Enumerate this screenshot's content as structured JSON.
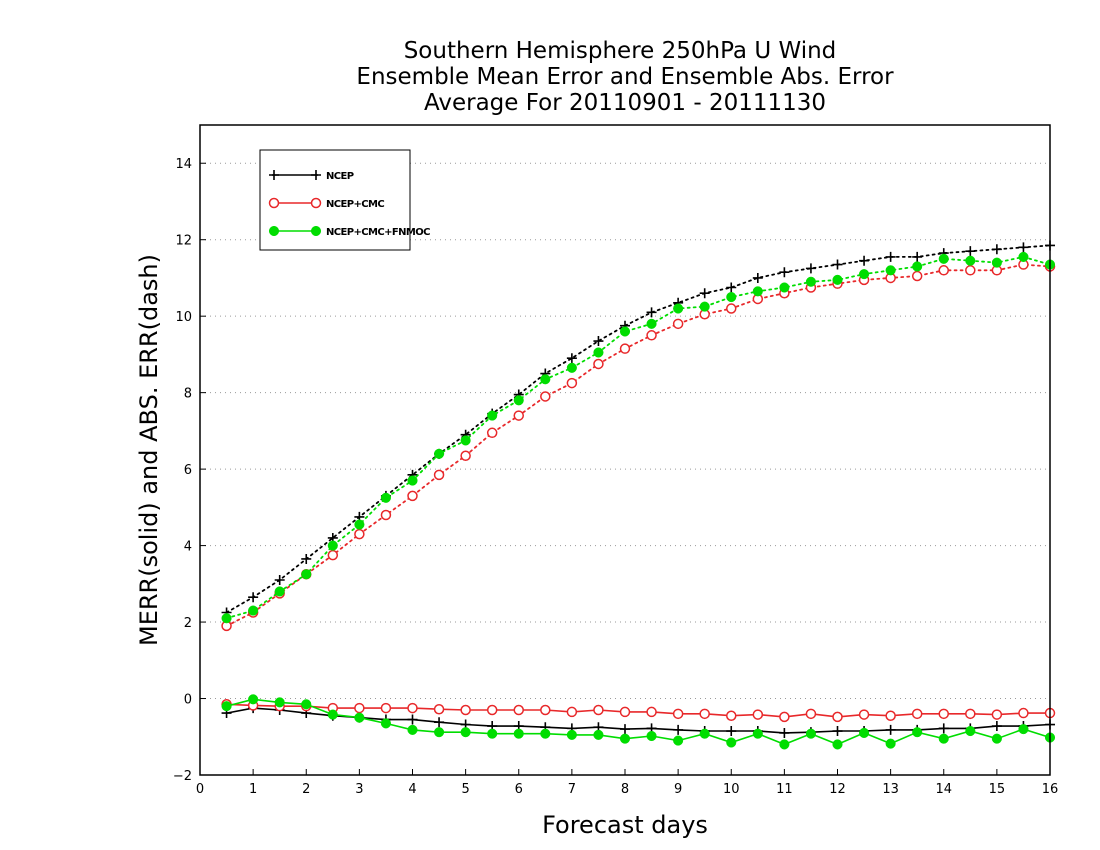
{
  "chart_data": {
    "type": "line",
    "title_lines": [
      "Southern Hemisphere 250hPa U Wind",
      "Ensemble Mean Error and Ensemble Abs. Error",
      "Average For 20110901 - 20111130"
    ],
    "xlabel": "Forecast days",
    "ylabel": "MERR(solid) and ABS. ERR(dash)",
    "xlim": [
      0,
      16
    ],
    "ylim": [
      -2,
      15
    ],
    "x_ticks": [
      0,
      1,
      2,
      3,
      4,
      5,
      6,
      7,
      8,
      9,
      10,
      11,
      12,
      13,
      14,
      15,
      16
    ],
    "x_tick_labels": [
      "0",
      "1",
      "2",
      "3",
      "4",
      "5",
      "6",
      "7",
      "8",
      "9",
      "10",
      "11",
      "12",
      "13",
      "14",
      "15",
      "16"
    ],
    "y_ticks": [
      -2,
      0,
      2,
      4,
      6,
      8,
      10,
      12,
      14
    ],
    "y_tick_labels": [
      "−2",
      "0",
      "2",
      "4",
      "6",
      "8",
      "10",
      "12",
      "14"
    ],
    "grid": "horizontal-dotted",
    "legend_position": "top-left",
    "x": [
      0.5,
      1,
      1.5,
      2,
      2.5,
      3,
      3.5,
      4,
      4.5,
      5,
      5.5,
      6,
      6.5,
      7,
      7.5,
      8,
      8.5,
      9,
      9.5,
      10,
      10.5,
      11,
      11.5,
      12,
      12.5,
      13,
      13.5,
      14,
      14.5,
      15,
      15.5,
      16
    ],
    "series": [
      {
        "name": "NCEP",
        "color": "#000000",
        "marker": "plus",
        "abs_err": [
          2.25,
          2.65,
          3.1,
          3.65,
          4.2,
          4.75,
          5.3,
          5.85,
          6.4,
          6.9,
          7.45,
          7.95,
          8.5,
          8.9,
          9.35,
          9.75,
          10.1,
          10.35,
          10.6,
          10.75,
          11.0,
          11.15,
          11.25,
          11.35,
          11.45,
          11.55,
          11.55,
          11.65,
          11.7,
          11.75,
          11.8,
          11.85
        ],
        "mean_err": [
          -0.38,
          -0.25,
          -0.3,
          -0.38,
          -0.45,
          -0.5,
          -0.55,
          -0.55,
          -0.62,
          -0.68,
          -0.72,
          -0.72,
          -0.75,
          -0.78,
          -0.75,
          -0.8,
          -0.78,
          -0.82,
          -0.85,
          -0.85,
          -0.85,
          -0.9,
          -0.88,
          -0.85,
          -0.85,
          -0.82,
          -0.82,
          -0.78,
          -0.78,
          -0.72,
          -0.72,
          -0.68
        ]
      },
      {
        "name": "NCEP+CMC",
        "color": "#e8282a",
        "marker": "open-circle",
        "abs_err": [
          1.9,
          2.25,
          2.75,
          3.25,
          3.75,
          4.3,
          4.8,
          5.3,
          5.85,
          6.35,
          6.95,
          7.4,
          7.9,
          8.25,
          8.75,
          9.15,
          9.5,
          9.8,
          10.05,
          10.2,
          10.45,
          10.6,
          10.75,
          10.85,
          10.95,
          11.0,
          11.05,
          11.2,
          11.2,
          11.2,
          11.35,
          11.3
        ],
        "mean_err": [
          -0.15,
          -0.18,
          -0.2,
          -0.2,
          -0.25,
          -0.25,
          -0.25,
          -0.25,
          -0.28,
          -0.3,
          -0.3,
          -0.3,
          -0.3,
          -0.35,
          -0.3,
          -0.35,
          -0.35,
          -0.4,
          -0.4,
          -0.45,
          -0.42,
          -0.48,
          -0.4,
          -0.48,
          -0.42,
          -0.45,
          -0.4,
          -0.4,
          -0.4,
          -0.42,
          -0.38,
          -0.38
        ]
      },
      {
        "name": "NCEP+CMC+FNMOC",
        "color": "#00dd00",
        "marker": "filled-circle",
        "abs_err": [
          2.1,
          2.3,
          2.8,
          3.25,
          4.0,
          4.55,
          5.25,
          5.7,
          6.4,
          6.75,
          7.4,
          7.8,
          8.35,
          8.65,
          9.05,
          9.6,
          9.8,
          10.2,
          10.25,
          10.5,
          10.65,
          10.75,
          10.9,
          10.95,
          11.1,
          11.2,
          11.3,
          11.5,
          11.45,
          11.4,
          11.55,
          11.35
        ],
        "mean_err": [
          -0.2,
          -0.02,
          -0.1,
          -0.15,
          -0.42,
          -0.5,
          -0.65,
          -0.82,
          -0.88,
          -0.88,
          -0.92,
          -0.92,
          -0.92,
          -0.95,
          -0.95,
          -1.05,
          -0.98,
          -1.1,
          -0.92,
          -1.15,
          -0.92,
          -1.2,
          -0.92,
          -1.2,
          -0.9,
          -1.18,
          -0.88,
          -1.05,
          -0.85,
          -1.05,
          -0.8,
          -1.02
        ]
      }
    ]
  }
}
